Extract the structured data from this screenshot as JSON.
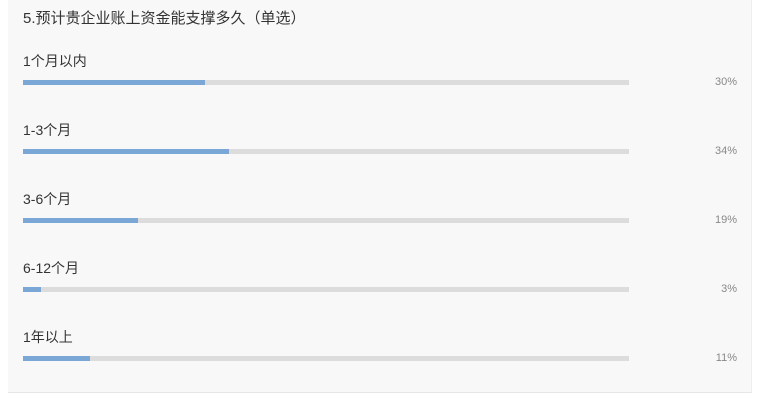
{
  "chart_data": {
    "type": "bar",
    "title": "5.预计贵企业账上资金能支撑多久（单选）",
    "categories": [
      "1个月以内",
      "1-3个月",
      "3-6个月",
      "6-12个月",
      "1年以上"
    ],
    "values": [
      30,
      34,
      19,
      3,
      11
    ],
    "value_labels": [
      "30%",
      "34%",
      "19%",
      "3%",
      "11%"
    ],
    "ylim": [
      0,
      100
    ],
    "colors": {
      "fill": "#7ba7d7",
      "track": "#dcdcdc"
    }
  }
}
